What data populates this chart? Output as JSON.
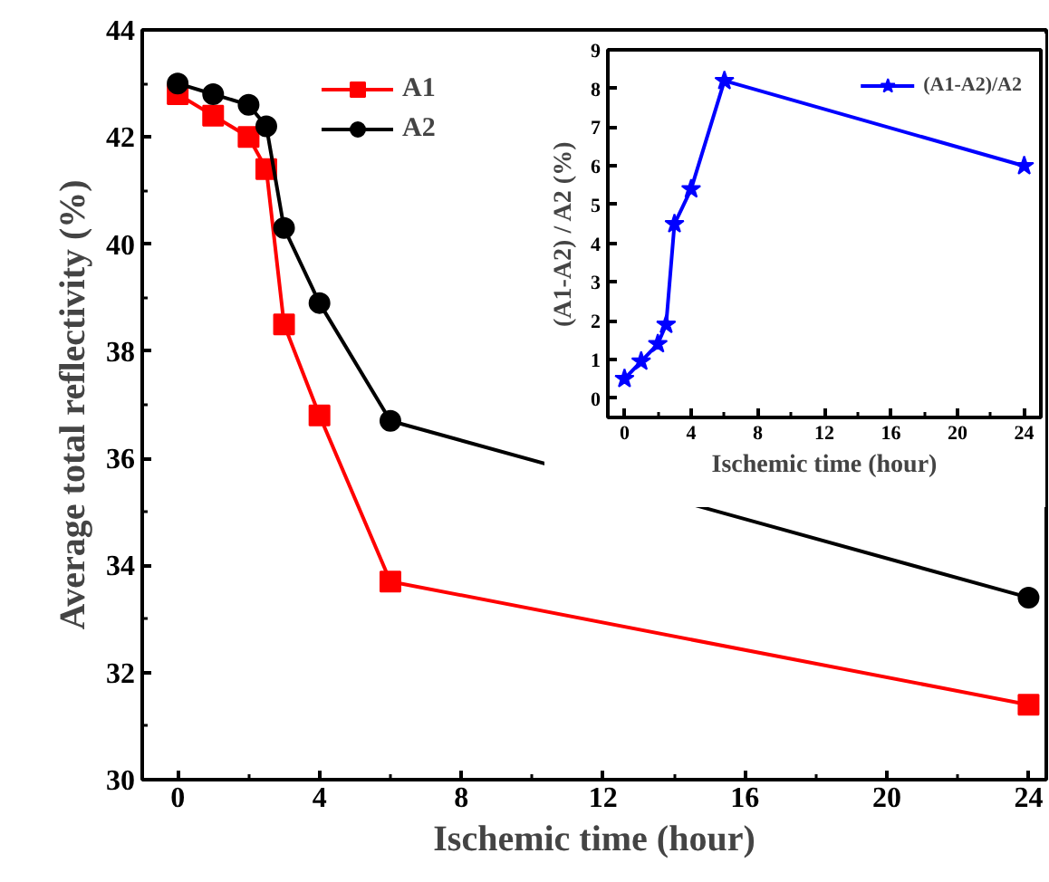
{
  "chart_data": [
    {
      "type": "line",
      "xlabel": "Ischemic time (hour)",
      "ylabel": "Average total reflectivity (%)",
      "x": [
        0,
        1,
        2,
        2.5,
        3,
        4,
        6,
        24
      ],
      "series": [
        {
          "name": "A1",
          "color": "#ff0000",
          "marker": "square",
          "values": [
            42.8,
            42.4,
            42.0,
            41.4,
            38.5,
            36.8,
            33.7,
            31.4
          ]
        },
        {
          "name": "A2",
          "color": "#000000",
          "marker": "circle",
          "values": [
            43.0,
            42.8,
            42.6,
            42.2,
            40.3,
            38.9,
            36.7,
            33.4
          ]
        }
      ],
      "xlim": [
        -1,
        24.5
      ],
      "xticks": [
        0,
        4,
        8,
        12,
        16,
        20,
        24
      ],
      "ylim": [
        30,
        44
      ],
      "yticks": [
        30,
        32,
        34,
        36,
        38,
        40,
        42,
        44
      ],
      "grid": false,
      "legend": "top",
      "line_style": "solid"
    },
    {
      "type": "line",
      "xlabel": "Ischemic time (hour)",
      "ylabel": "(A1-A2) / A2 (%)",
      "x": [
        0,
        1,
        2,
        2.5,
        3,
        4,
        6,
        24
      ],
      "series": [
        {
          "name": "(A1-A2)/A2",
          "color": "#0000ff",
          "marker": "star",
          "values": [
            0.5,
            0.95,
            1.4,
            1.9,
            4.5,
            5.4,
            8.2,
            6.0
          ]
        }
      ],
      "xlim": [
        -1,
        25
      ],
      "xticks": [
        0,
        4,
        8,
        12,
        16,
        20,
        24
      ],
      "ylim": [
        -0.5,
        9
      ],
      "yticks": [
        0,
        1,
        2,
        3,
        4,
        5,
        6,
        7,
        8,
        9
      ],
      "grid": false,
      "legend": "top right",
      "line_style": "solid"
    }
  ]
}
